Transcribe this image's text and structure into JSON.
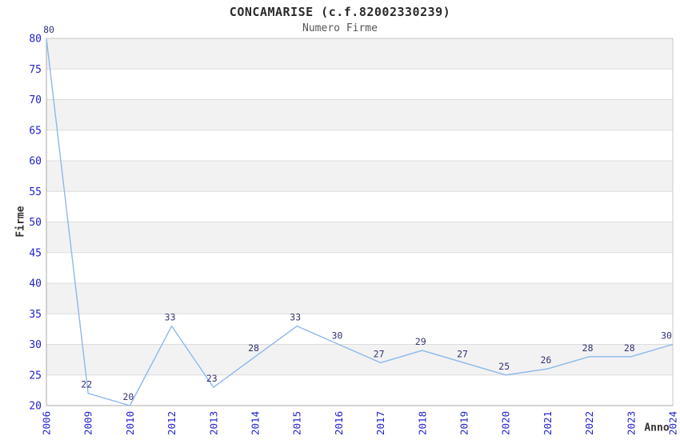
{
  "chart_data": {
    "type": "line",
    "title": "CONCAMARISE (c.f.82002330239)",
    "subtitle": "Numero Firme",
    "xlabel": "Anno",
    "ylabel": "Firme",
    "categories": [
      "2006",
      "2009",
      "2010",
      "2012",
      "2013",
      "2014",
      "2015",
      "2016",
      "2017",
      "2018",
      "2019",
      "2020",
      "2021",
      "2022",
      "2023",
      "2024"
    ],
    "values": [
      80,
      22,
      20,
      33,
      23,
      28,
      33,
      30,
      27,
      29,
      27,
      25,
      26,
      28,
      28,
      30
    ],
    "data_labels": [
      "80",
      "22",
      "20",
      "33",
      "23",
      "28",
      "33",
      "30",
      "27",
      "29",
      "27",
      "25",
      "26",
      "28",
      "28",
      "30"
    ],
    "ylim": [
      20,
      80
    ],
    "ytick_step": 5,
    "ytick_labels": [
      "20",
      "25",
      "30",
      "35",
      "40",
      "45",
      "50",
      "55",
      "60",
      "65",
      "70",
      "75",
      "80"
    ],
    "grid": "horizontal-alternating-bands",
    "legend": "none",
    "markers": "none",
    "colors": {
      "line": "#8bb9ea",
      "tick_label": "#2222cc",
      "data_label": "#333375",
      "band": "#f2f2f2",
      "gridline": "#dcdcdc",
      "border": "#c8c8c8",
      "axis_line": "#a8a8a8",
      "title": "#2b2b2b",
      "subtitle": "#555555",
      "axis_title": "#333333",
      "background": "#ffffff"
    }
  }
}
